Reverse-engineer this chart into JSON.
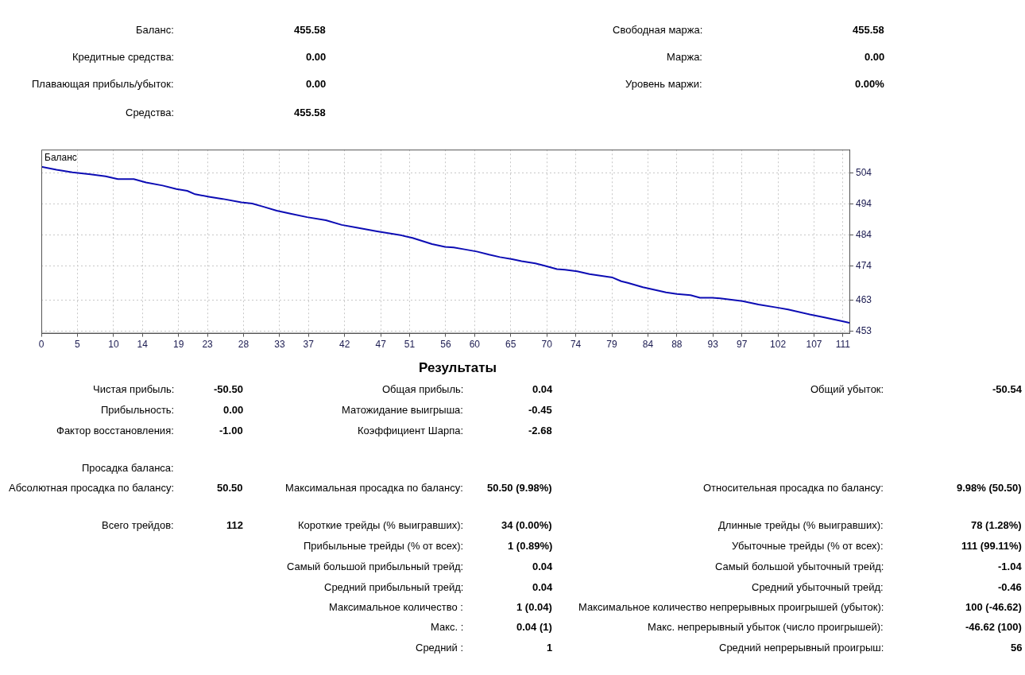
{
  "chart_data": [
    {
      "type": "other",
      "annotations": [
        "Баланс:",
        "455.58",
        "Свободная маржа:",
        "455.58",
        "Кредитные средства:",
        "0.00",
        "Маржа:",
        "0.00",
        "Плавающая прибыль/убыток:",
        "0.00",
        "Уровень маржи:",
        "0.00%",
        "Средства:",
        "455.58"
      ]
    },
    {
      "type": "line",
      "xlim": [
        0,
        112
      ],
      "ylim": [
        452.2,
        511.6
      ],
      "xticks": [
        0,
        5,
        10,
        14,
        19,
        23,
        28,
        33,
        37,
        42,
        47,
        51,
        56,
        60,
        65,
        70,
        74,
        79,
        84,
        88,
        93,
        97,
        102,
        107,
        111
      ],
      "yticks": [
        453,
        463,
        474,
        484,
        494,
        504
      ],
      "grid": true,
      "marker": "none",
      "line_style": "solid",
      "x": [
        0,
        2.1,
        4.3,
        6.8,
        8.9,
        10.6,
        12.8,
        14.5,
        16.8,
        18.7,
        20.2,
        21.3,
        23.2,
        25.1,
        27.7,
        29.2,
        30.7,
        32.6,
        34.5,
        36.8,
        39.4,
        41.6,
        43.5,
        46.5,
        49.9,
        51.4,
        54.1,
        55.9,
        57.1,
        58.6,
        60.3,
        62.0,
        63.5,
        65.2,
        66.5,
        68.4,
        69.7,
        71.4,
        72.5,
        74.2,
        75.9,
        77.4,
        79.1,
        80.3,
        81.2,
        83.3,
        85.4,
        86.5,
        88.0,
        89.9,
        91.2,
        92.9,
        94.0,
        97.1,
        99.3,
        101.9,
        103.4,
        106.4,
        108.3,
        110.9,
        112
      ],
      "series": [
        {
          "name": "Баланс",
          "color": "#0c0cb4",
          "values": [
            506.1,
            505.1,
            504.3,
            503.6,
            503.0,
            502.1,
            502.1,
            501.0,
            500.0,
            498.9,
            498.3,
            497.2,
            496.4,
            495.7,
            494.6,
            494.2,
            493.2,
            491.9,
            490.9,
            489.8,
            488.8,
            487.3,
            486.5,
            485.2,
            483.9,
            483.1,
            481.1,
            480.2,
            480.0,
            479.4,
            478.7,
            477.7,
            476.9,
            476.2,
            475.6,
            474.9,
            474.1,
            473.0,
            472.8,
            472.3,
            471.4,
            470.9,
            470.3,
            469.1,
            468.6,
            467.2,
            466.1,
            465.5,
            465.0,
            464.6,
            463.8,
            463.8,
            463.6,
            462.7,
            461.6,
            460.6,
            460.0,
            458.4,
            457.5,
            456.2,
            455.6
          ]
        }
      ]
    },
    {
      "type": "other",
      "title": "Результаты",
      "annotations": [
        "Чистая прибыль:",
        "-50.50",
        "Общая прибыль:",
        "0.04",
        "Общий убыток:",
        "-50.54",
        "Прибыльность:",
        "0.00",
        "Матожидание выигрыша:",
        "-0.45",
        "Фактор восстановления:",
        "-1.00",
        "Коэффициент Шарпа:",
        "-2.68",
        "Просадка баланса:",
        "Абсолютная просадка по балансу:",
        "50.50",
        "Максимальная просадка по балансу:",
        "50.50 (9.98%)",
        "Относительная просадка по балансу:",
        "9.98% (50.50)",
        "Всего трейдов:",
        "112",
        "Короткие трейды (% выигравших):",
        "34 (0.00%)",
        "Длинные трейды (% выигравших):",
        "78 (1.28%)",
        "Прибыльные трейды (% от всех):",
        "1 (0.89%)",
        "Убыточные трейды (% от всех):",
        "111 (99.11%)",
        "Самый большой прибыльный трейд:",
        "0.04",
        "Самый большой убыточный трейд:",
        "-1.04",
        "Средний прибыльный трейд:",
        "0.04",
        "Средний убыточный трейд:",
        "-0.46",
        "Максимальное количество :",
        "1 (0.04)",
        "Максимальное количество непрерывных проигрышей (убыток):",
        "100 (-46.62)",
        "Макс. :",
        "0.04 (1)",
        "Макс. непрерывный убыток (число проигрышей):",
        "-46.62 (100)",
        "Средний :",
        "1",
        "Средний непрерывный проигрыш:",
        "56"
      ]
    }
  ]
}
